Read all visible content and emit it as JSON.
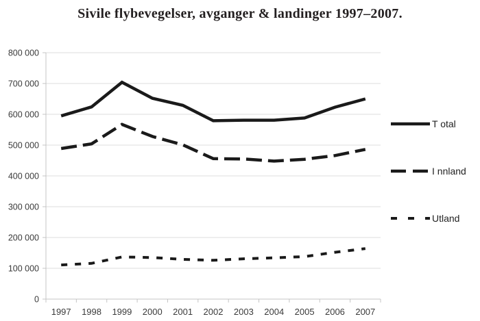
{
  "colors": {
    "series": "#1a1a1a",
    "grid": "#dcdcdc",
    "axis": "#c4c4c4",
    "label": "#3a3a3a"
  },
  "chart_data": {
    "type": "line",
    "title": "Sivile flybevegelser, avganger & landinger 1997–2007.",
    "categories": [
      "1997",
      "1998",
      "1999",
      "2000",
      "2001",
      "2002",
      "2003",
      "2004",
      "2005",
      "2006",
      "2007"
    ],
    "series": [
      {
        "name": "T otal",
        "line_style": "solid",
        "values": [
          595000,
          624000,
          704000,
          652000,
          629000,
          579000,
          581000,
          581000,
          588000,
          623000,
          650000
        ]
      },
      {
        "name": "I nnland",
        "line_style": "dashed",
        "values": [
          489000,
          504000,
          567000,
          528000,
          501000,
          456000,
          455000,
          448000,
          454000,
          466000,
          486000
        ]
      },
      {
        "name": "Utland",
        "line_style": "dotted",
        "values": [
          111000,
          116000,
          137000,
          135000,
          129000,
          126000,
          131000,
          134000,
          138000,
          152000,
          164000
        ]
      }
    ],
    "xlabel": "",
    "ylabel": "",
    "ylim": [
      0,
      800000
    ],
    "ytick_step": 100000,
    "ytick_labels": [
      "0",
      "100 000",
      "200 000",
      "300 000",
      "400 000",
      "500 000",
      "600 000",
      "700 000",
      "800 000"
    ],
    "grid": true,
    "legend_position": "right"
  }
}
